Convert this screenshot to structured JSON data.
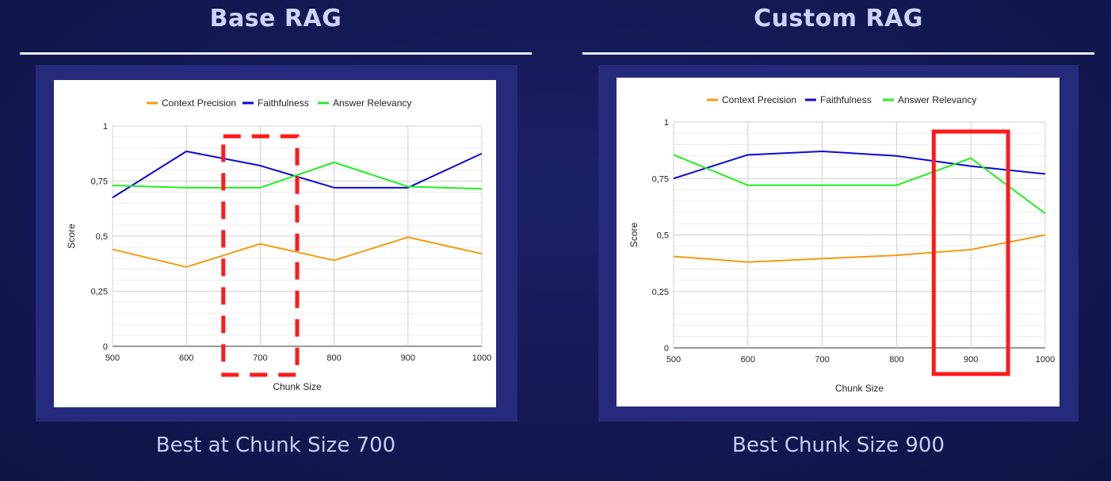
{
  "panels": [
    {
      "title": "Base RAG",
      "caption": "Best at Chunk Size 700",
      "highlight_style": "dashed",
      "highlight_x": [
        650,
        750
      ],
      "chart_data": {
        "type": "line",
        "x": [
          500,
          600,
          700,
          800,
          900,
          1000
        ],
        "x_ticks": [
          "500",
          "600",
          "700",
          "800",
          "900",
          "1000"
        ],
        "y_ticks": [
          "0",
          "0,25",
          "0,5",
          "0,75",
          "1"
        ],
        "ylim": [
          0,
          1
        ],
        "xlabel": "Chunk Size",
        "ylabel": "Score",
        "legend_position": "top",
        "grid": true,
        "series": [
          {
            "name": "Context Precision",
            "color": "#f39c12",
            "values": [
              0.44,
              0.36,
              0.465,
              0.39,
              0.495,
              0.42
            ]
          },
          {
            "name": "Faithfulness",
            "color": "#0a0ad8",
            "values": [
              0.675,
              0.885,
              0.82,
              0.72,
              0.72,
              0.875
            ]
          },
          {
            "name": "Answer Relevancy",
            "color": "#22ee22",
            "values": [
              0.73,
              0.72,
              0.72,
              0.835,
              0.725,
              0.715
            ]
          }
        ]
      }
    },
    {
      "title": "Custom RAG",
      "caption": "Best Chunk Size 900",
      "highlight_style": "solid",
      "highlight_x": [
        850,
        950
      ],
      "chart_data": {
        "type": "line",
        "x": [
          500,
          600,
          700,
          800,
          900,
          1000
        ],
        "x_ticks": [
          "500",
          "600",
          "700",
          "800",
          "900",
          "1000"
        ],
        "y_ticks": [
          "0",
          "0,25",
          "0,5",
          "0,75",
          "1"
        ],
        "ylim": [
          0,
          1
        ],
        "xlabel": "Chunk Size",
        "ylabel": "Score",
        "legend_position": "top",
        "grid": true,
        "series": [
          {
            "name": "Context Precision",
            "color": "#f39c12",
            "values": [
              0.405,
              0.38,
              0.395,
              0.41,
              0.435,
              0.5
            ]
          },
          {
            "name": "Faithfulness",
            "color": "#0a0ad8",
            "values": [
              0.75,
              0.855,
              0.87,
              0.85,
              0.805,
              0.77
            ]
          },
          {
            "name": "Answer Relevancy",
            "color": "#22ee22",
            "values": [
              0.855,
              0.72,
              0.72,
              0.72,
              0.84,
              0.595
            ]
          }
        ]
      }
    }
  ]
}
